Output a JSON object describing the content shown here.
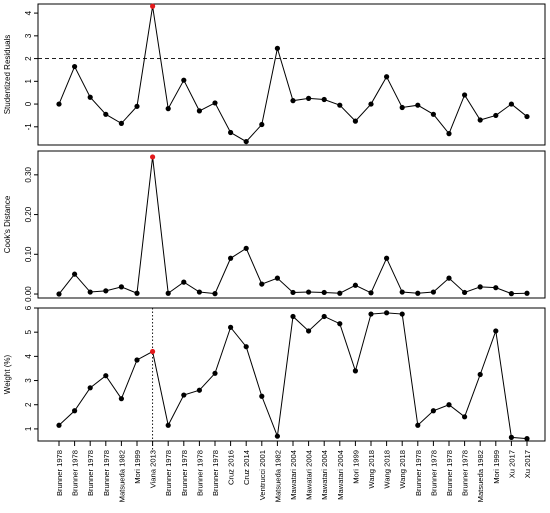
{
  "chart_data": [
    {
      "type": "line",
      "title": "",
      "xlabel": "",
      "ylabel": "Studentized Residuals",
      "ylim": [
        -1.8,
        4.4
      ],
      "yticks": [
        -1,
        0,
        1,
        2,
        3,
        4
      ],
      "yticklabels": [
        "-1",
        "0",
        "1",
        "2",
        "3",
        "4"
      ],
      "reference_line": 2,
      "highlight_index": 6,
      "values": [
        0.0,
        1.65,
        0.3,
        -0.45,
        -0.85,
        -0.1,
        4.3,
        -0.2,
        1.05,
        -0.3,
        0.05,
        -1.25,
        -1.65,
        -0.9,
        2.45,
        0.15,
        0.25,
        0.2,
        -0.05,
        -0.75,
        0.0,
        1.2,
        -0.15,
        -0.05,
        -0.45,
        -1.3,
        0.4,
        -0.7,
        -0.5,
        0.0,
        -0.55
      ]
    },
    {
      "type": "line",
      "title": "",
      "xlabel": "",
      "ylabel": "Cook's Distance",
      "ylim": [
        -0.01,
        0.36
      ],
      "yticks": [
        0.0,
        0.1,
        0.2,
        0.3
      ],
      "yticklabels": [
        "0.00",
        "0.10",
        "0.20",
        "0.30"
      ],
      "highlight_index": 6,
      "values": [
        0.0,
        0.05,
        0.005,
        0.008,
        0.018,
        0.002,
        0.345,
        0.002,
        0.03,
        0.005,
        0.001,
        0.09,
        0.115,
        0.025,
        0.04,
        0.004,
        0.005,
        0.004,
        0.002,
        0.022,
        0.003,
        0.09,
        0.005,
        0.002,
        0.005,
        0.04,
        0.004,
        0.018,
        0.016,
        0.001,
        0.002
      ]
    },
    {
      "type": "line",
      "title": "",
      "xlabel": "",
      "ylabel": "Weight (%)",
      "ylim": [
        0.5,
        6.0
      ],
      "yticks": [
        1,
        2,
        3,
        4,
        5,
        6
      ],
      "yticklabels": [
        "1",
        "2",
        "3",
        "4",
        "5",
        "6"
      ],
      "vertical_marker_index": 6,
      "highlight_index": 6,
      "values": [
        1.15,
        1.75,
        2.7,
        3.2,
        2.25,
        3.85,
        4.2,
        1.15,
        2.4,
        2.6,
        3.3,
        5.2,
        4.4,
        2.35,
        0.7,
        5.65,
        5.05,
        5.65,
        5.35,
        3.4,
        5.75,
        5.8,
        5.75,
        1.15,
        1.75,
        2.0,
        1.5,
        3.25,
        5.05,
        0.65,
        0.6
      ]
    }
  ],
  "studies": [
    "Brunner 1978",
    "Brunner  1978",
    "Brunner  1978",
    "Brunner  1978",
    "Matsueda 1982",
    "Mori 1999",
    "Viana 2013",
    "Brunner 1978",
    "Brunner 1978",
    "Brunner 1978",
    "Brunner 1978",
    "Cruz 2016",
    "Cruz 2014",
    "Ventrucci 2001",
    "Matsueda 1982",
    "Mawatari 2004",
    "Mawatari 2004",
    "Mawatari 2004",
    "Mawatari 2004",
    "Mori 1999",
    "Wang 2018",
    "Wang 2018",
    "Wang 2018",
    "Brunner 1978",
    "Brunner 1978",
    "Brunner 1978",
    "Brunner 1978",
    "Matsueda 1982",
    "Mori 1999",
    "Xu 2017",
    "Xu 2017"
  ],
  "colors": {
    "line": "#000000",
    "point": "#000000",
    "highlight": "#e31a1c"
  }
}
